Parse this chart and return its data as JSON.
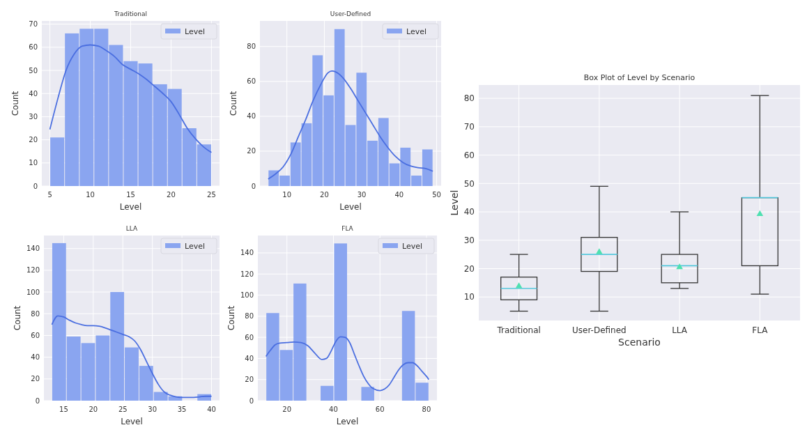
{
  "chart_data": [
    {
      "type": "histogram",
      "title": "Traditional",
      "xlabel": "Level",
      "ylabel": "Count",
      "xlim": [
        4,
        26
      ],
      "ylim": [
        0,
        71.4
      ],
      "xticks": [
        5,
        10,
        15,
        20,
        25
      ],
      "yticks": [
        0,
        10,
        20,
        30,
        40,
        50,
        60,
        70
      ],
      "grid": true,
      "legend": "top right",
      "series": [
        {
          "name": "Level",
          "type": "histogram",
          "color": "#8aa5f0",
          "bins": [
            5,
            6.82,
            8.64,
            10.45,
            12.27,
            14.09,
            15.91,
            17.73,
            19.55,
            21.36,
            23.18,
            25
          ],
          "values": [
            21,
            66,
            68,
            68,
            61,
            54,
            53,
            44,
            42,
            25,
            18
          ]
        },
        {
          "type": "line",
          "color": "#4a6ee0",
          "x": [
            5,
            6,
            7,
            8,
            9,
            10,
            11,
            12,
            13,
            14,
            15,
            16,
            17,
            18,
            19,
            20,
            21,
            22,
            23,
            24,
            25
          ],
          "values": [
            24.5,
            38,
            50,
            57,
            60.5,
            61,
            60.5,
            58.5,
            56,
            52.5,
            50.5,
            48.5,
            46,
            43,
            40,
            36.5,
            31,
            25,
            20.5,
            17,
            14.5
          ]
        }
      ]
    },
    {
      "type": "histogram",
      "title": "User-Defined",
      "xlabel": "Level",
      "ylabel": "Count",
      "xlim": [
        2.8,
        51.2
      ],
      "ylim": [
        0,
        94.7
      ],
      "xticks": [
        10,
        20,
        30,
        40,
        50
      ],
      "yticks": [
        0,
        20,
        40,
        60,
        80
      ],
      "grid": true,
      "legend": "top right",
      "series": [
        {
          "name": "Level",
          "type": "histogram",
          "color": "#8aa5f0",
          "bins": [
            5,
            7.93,
            10.87,
            13.8,
            16.73,
            19.67,
            22.6,
            25.53,
            28.47,
            31.4,
            34.33,
            37.27,
            40.2,
            43.13,
            46.07,
            49
          ],
          "values": [
            9,
            6,
            25,
            36,
            75,
            52,
            90,
            35,
            65,
            26,
            39,
            13,
            22,
            6,
            21
          ]
        },
        {
          "type": "line",
          "color": "#4a6ee0",
          "x": [
            5,
            7,
            9,
            11,
            13,
            15,
            17,
            19,
            21,
            22,
            23,
            25,
            27,
            29,
            31,
            33,
            35,
            37,
            39,
            41,
            43,
            45,
            47,
            49
          ],
          "values": [
            4,
            7,
            11,
            18,
            28,
            38,
            49,
            58,
            65,
            66,
            65.5,
            62,
            56,
            49,
            42,
            35,
            28,
            22,
            17,
            13.5,
            11.5,
            10.5,
            10,
            8.5
          ]
        }
      ]
    },
    {
      "type": "histogram",
      "title": "LLA",
      "xlabel": "Level",
      "ylabel": "Count",
      "xlim": [
        11.65,
        41.35
      ],
      "ylim": [
        0,
        152
      ],
      "xticks": [
        15,
        20,
        25,
        30,
        35,
        40
      ],
      "yticks": [
        0,
        20,
        40,
        60,
        80,
        100,
        120,
        140
      ],
      "grid": true,
      "legend": "top right",
      "series": [
        {
          "name": "Level",
          "type": "histogram",
          "color": "#8aa5f0",
          "bins": [
            13,
            15.45,
            17.91,
            20.36,
            22.82,
            25.27,
            27.73,
            30.18,
            32.64,
            35.09,
            37.55,
            40
          ],
          "values": [
            145,
            59,
            53,
            60,
            100,
            49,
            32,
            8,
            4,
            0,
            6
          ]
        },
        {
          "type": "line",
          "color": "#4a6ee0",
          "x": [
            13,
            14,
            15,
            16,
            17,
            18,
            19,
            20,
            21,
            22,
            23,
            24,
            25,
            26,
            27,
            28,
            29,
            30,
            31,
            32,
            33,
            34,
            35,
            36,
            37,
            38,
            39,
            40
          ],
          "values": [
            70,
            78,
            77,
            74,
            71.5,
            70,
            69,
            69,
            68.5,
            67,
            65,
            63,
            61,
            59,
            55,
            47,
            36,
            25,
            15,
            8,
            5,
            3.5,
            3,
            3,
            3,
            3.5,
            4,
            4
          ]
        }
      ]
    },
    {
      "type": "histogram",
      "title": "FLA",
      "xlabel": "Level",
      "ylabel": "Count",
      "xlim": [
        7.5,
        84.5
      ],
      "ylim": [
        0,
        156.5
      ],
      "xticks": [
        20,
        40,
        60,
        80
      ],
      "yticks": [
        0,
        20,
        40,
        60,
        80,
        100,
        120,
        140
      ],
      "grid": true,
      "legend": "top right",
      "series": [
        {
          "name": "Level",
          "type": "histogram",
          "color": "#8aa5f0",
          "bins": [
            11,
            16.83,
            22.67,
            28.5,
            34.33,
            40.17,
            46,
            51.83,
            57.67,
            63.5,
            69.33,
            75.17,
            81
          ],
          "values": [
            83,
            48,
            111,
            0,
            14,
            149,
            0,
            13,
            0,
            0,
            85,
            17
          ]
        },
        {
          "type": "line",
          "color": "#4a6ee0",
          "x": [
            11,
            13,
            15,
            17,
            20,
            23,
            26,
            29,
            32,
            35,
            37,
            39,
            41,
            43,
            45,
            47,
            49,
            51,
            53,
            55,
            57,
            60,
            62,
            64,
            66,
            68,
            70,
            72,
            74,
            76,
            78,
            80,
            81
          ],
          "values": [
            42,
            48,
            53,
            54.5,
            55,
            55.5,
            55,
            52,
            45,
            39,
            40,
            47,
            56,
            60.5,
            60,
            55,
            44,
            33,
            23,
            16,
            11.5,
            9.5,
            11,
            15,
            22,
            29,
            34,
            36,
            36,
            33,
            28,
            23,
            20
          ]
        }
      ]
    },
    {
      "type": "box",
      "title": "Box Plot of Level by Scenario",
      "xlabel": "Scenario",
      "ylabel": "Level",
      "categories": [
        "Traditional",
        "User-Defined",
        "LLA",
        "FLA"
      ],
      "ylim": [
        1.7,
        84.7
      ],
      "yticks": [
        10,
        20,
        30,
        40,
        50,
        60,
        70,
        80
      ],
      "grid": true,
      "marker": "triangle",
      "color": "#333333",
      "boxes": [
        {
          "low": 5,
          "q1": 9,
          "median": 13,
          "q3": 17,
          "high": 25,
          "mean": 13.8
        },
        {
          "low": 5,
          "q1": 19,
          "median": 25,
          "q3": 31,
          "high": 49,
          "mean": 25.8
        },
        {
          "low": 13,
          "q1": 15,
          "median": 21,
          "q3": 25,
          "high": 40,
          "mean": 20.5
        },
        {
          "low": 11,
          "q1": 21,
          "median": 45,
          "q3": 45,
          "high": 81,
          "mean": 39.2
        }
      ]
    }
  ]
}
